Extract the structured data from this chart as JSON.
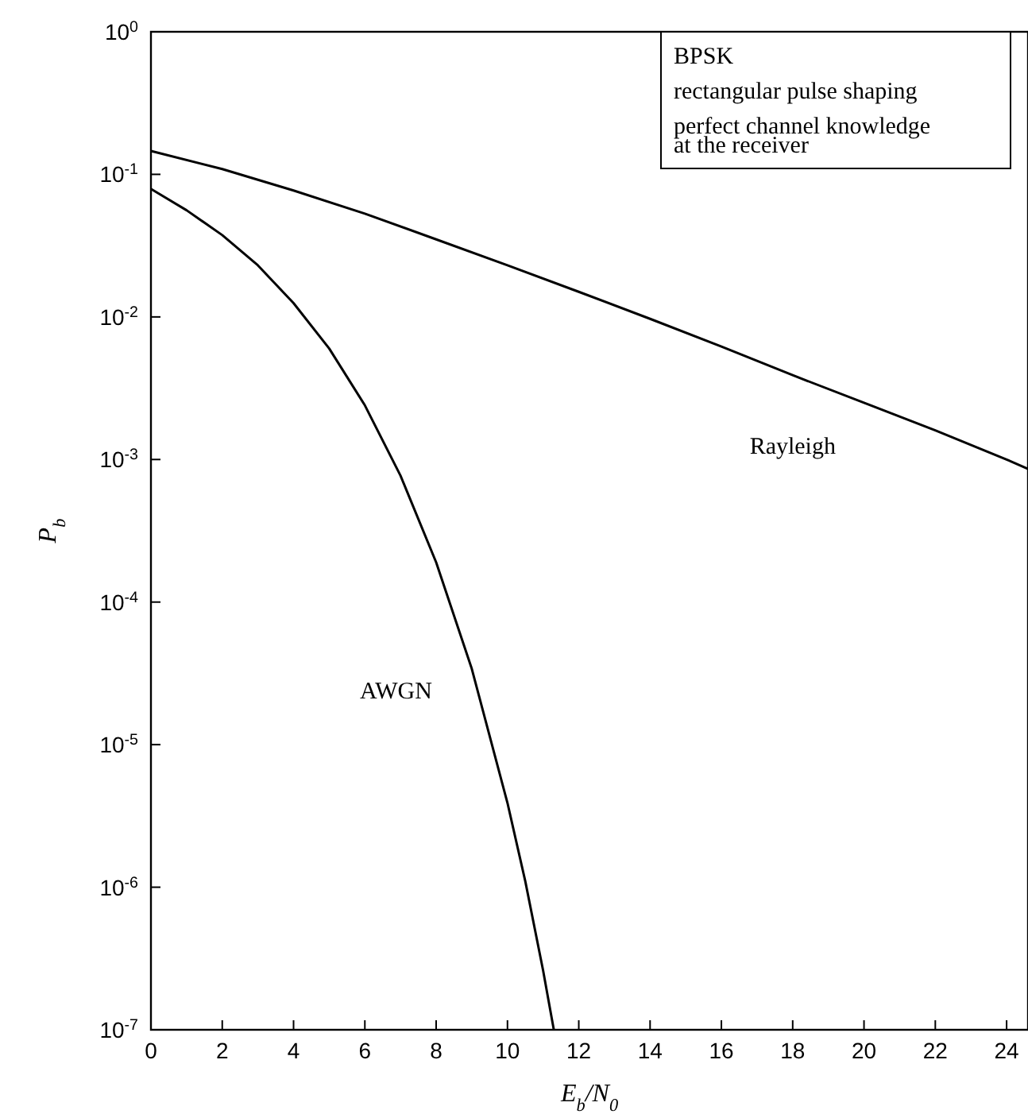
{
  "chart_data": {
    "type": "line",
    "xlabel": "E$_{b}$/N$_{0}$",
    "ylabel": "P$_{b}$",
    "log": "y",
    "grid": false,
    "legend": false,
    "marker": "none",
    "line_style": "solid",
    "xlim": [
      0,
      24.6
    ],
    "xticks": [
      0,
      2,
      4,
      6,
      8,
      10,
      12,
      14,
      16,
      18,
      20,
      22,
      24
    ],
    "ylim": [
      1e-07,
      1
    ],
    "yticks": [
      {
        "value": 1e-07,
        "label": "10$^{-7}$"
      },
      {
        "value": 1e-06,
        "label": "10$^{-6}$"
      },
      {
        "value": 1e-05,
        "label": "10$^{-5}$"
      },
      {
        "value": 0.0001,
        "label": "10$^{-4}$"
      },
      {
        "value": 0.001,
        "label": "10$^{-3}$"
      },
      {
        "value": 0.01,
        "label": "10$^{-2}$"
      },
      {
        "value": 0.1,
        "label": "10$^{-1}$"
      },
      {
        "value": 1,
        "label": "10$^{0}$"
      }
    ],
    "series": [
      {
        "name": "Rayleigh",
        "color": "#000000",
        "x": [
          0,
          2,
          4,
          6,
          8,
          10,
          12,
          14,
          16,
          18,
          20,
          22,
          24,
          24.6
        ],
        "values": [
          0.146,
          0.109,
          0.077,
          0.053,
          0.035,
          0.023,
          0.015,
          0.0097,
          0.0062,
          0.0039,
          0.0025,
          0.0016,
          0.001,
          0.00086
        ]
      },
      {
        "name": "AWGN",
        "color": "#000000",
        "x": [
          0,
          1,
          2,
          3,
          4,
          5,
          6,
          7,
          8,
          9,
          10,
          10.5,
          11,
          11.3
        ],
        "values": [
          0.079,
          0.056,
          0.0375,
          0.023,
          0.0125,
          0.006,
          0.0024,
          0.00077,
          0.00019,
          3.4e-05,
          3.9e-06,
          1.1e-06,
          2.6e-07,
          1e-07
        ]
      }
    ],
    "annotations": [
      "BPSK",
      "rectangular pulse shaping",
      "perfect channel knowledge",
      "at the receiver"
    ]
  }
}
